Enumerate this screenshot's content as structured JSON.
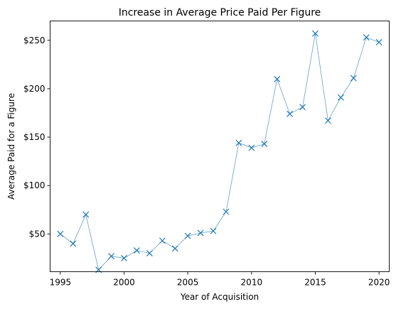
{
  "chart_data": {
    "type": "line",
    "title": "Increase in Average Price Paid Per Figure",
    "xlabel": "Year of Acquisition",
    "ylabel": "Average Paid for a Figure",
    "xlim": [
      1994.2,
      2020.8
    ],
    "ylim": [
      11,
      270
    ],
    "x_ticks": [
      1995,
      2000,
      2005,
      2010,
      2015,
      2020
    ],
    "y_ticks": [
      50,
      100,
      150,
      200,
      250
    ],
    "y_tick_labels": [
      "$50",
      "$100",
      "$150",
      "$200",
      "$250"
    ],
    "grid": false,
    "marker": "x",
    "color": "#1f77b4",
    "x": [
      1995,
      1996,
      1997,
      1998,
      1999,
      2000,
      2001,
      2002,
      2003,
      2004,
      2005,
      2006,
      2007,
      2008,
      2009,
      2010,
      2011,
      2012,
      2013,
      2014,
      2015,
      2016,
      2017,
      2018,
      2019,
      2020
    ],
    "y": [
      50,
      40,
      70,
      13,
      27,
      25,
      33,
      30,
      43,
      35,
      48,
      51,
      53,
      73,
      144,
      139,
      143,
      210,
      174,
      181,
      257,
      167,
      191,
      211,
      253,
      248
    ]
  }
}
